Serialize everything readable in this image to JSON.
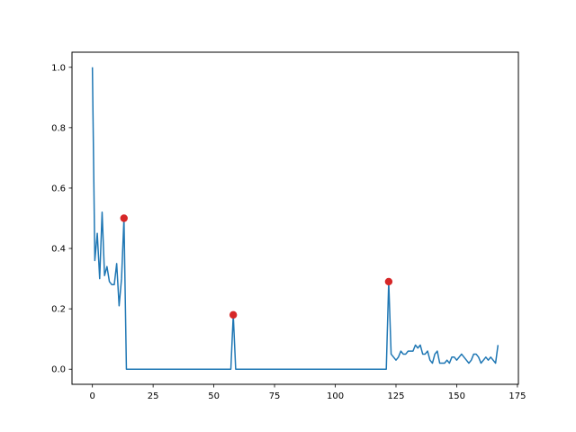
{
  "chart_data": {
    "type": "line",
    "title": "",
    "xlabel": "",
    "ylabel": "",
    "xlim": [
      -8.4,
      175.4
    ],
    "ylim": [
      -0.05,
      1.05
    ],
    "xticks": [
      0,
      25,
      50,
      75,
      100,
      125,
      150,
      175
    ],
    "yticks": [
      0.0,
      0.2,
      0.4,
      0.6,
      0.8,
      1.0
    ],
    "xtick_labels": [
      "0",
      "25",
      "50",
      "75",
      "100",
      "125",
      "150",
      "175"
    ],
    "ytick_labels": [
      "0.0",
      "0.2",
      "0.4",
      "0.6",
      "0.8",
      "1.0"
    ],
    "grid": false,
    "series": [
      {
        "color": "#1f77b4",
        "x": [
          0,
          1,
          2,
          3,
          4,
          5,
          6,
          7,
          8,
          9,
          10,
          11,
          12,
          13,
          14,
          15,
          57,
          58,
          59,
          120,
          121,
          122,
          123,
          124,
          125,
          126,
          127,
          128,
          129,
          130,
          131,
          132,
          133,
          134,
          135,
          136,
          137,
          138,
          139,
          140,
          141,
          142,
          143,
          144,
          145,
          146,
          147,
          148,
          149,
          150,
          151,
          152,
          153,
          154,
          155,
          156,
          157,
          158,
          159,
          160,
          161,
          162,
          163,
          164,
          165,
          166,
          167
        ],
        "y": [
          1.0,
          0.36,
          0.45,
          0.3,
          0.52,
          0.31,
          0.34,
          0.29,
          0.28,
          0.28,
          0.35,
          0.21,
          0.3,
          0.5,
          0.0,
          0.0,
          0.0,
          0.18,
          0.0,
          0.0,
          0.0,
          0.29,
          0.05,
          0.04,
          0.03,
          0.04,
          0.06,
          0.05,
          0.05,
          0.06,
          0.06,
          0.06,
          0.08,
          0.07,
          0.08,
          0.05,
          0.05,
          0.06,
          0.03,
          0.02,
          0.05,
          0.06,
          0.02,
          0.02,
          0.02,
          0.03,
          0.02,
          0.04,
          0.04,
          0.03,
          0.04,
          0.05,
          0.04,
          0.03,
          0.02,
          0.03,
          0.05,
          0.05,
          0.04,
          0.02,
          0.03,
          0.04,
          0.03,
          0.04,
          0.03,
          0.02,
          0.08
        ]
      },
      {
        "type": "scatter",
        "color": "#d62728",
        "x": [
          13,
          58,
          122
        ],
        "y": [
          0.5,
          0.18,
          0.29
        ]
      }
    ]
  }
}
